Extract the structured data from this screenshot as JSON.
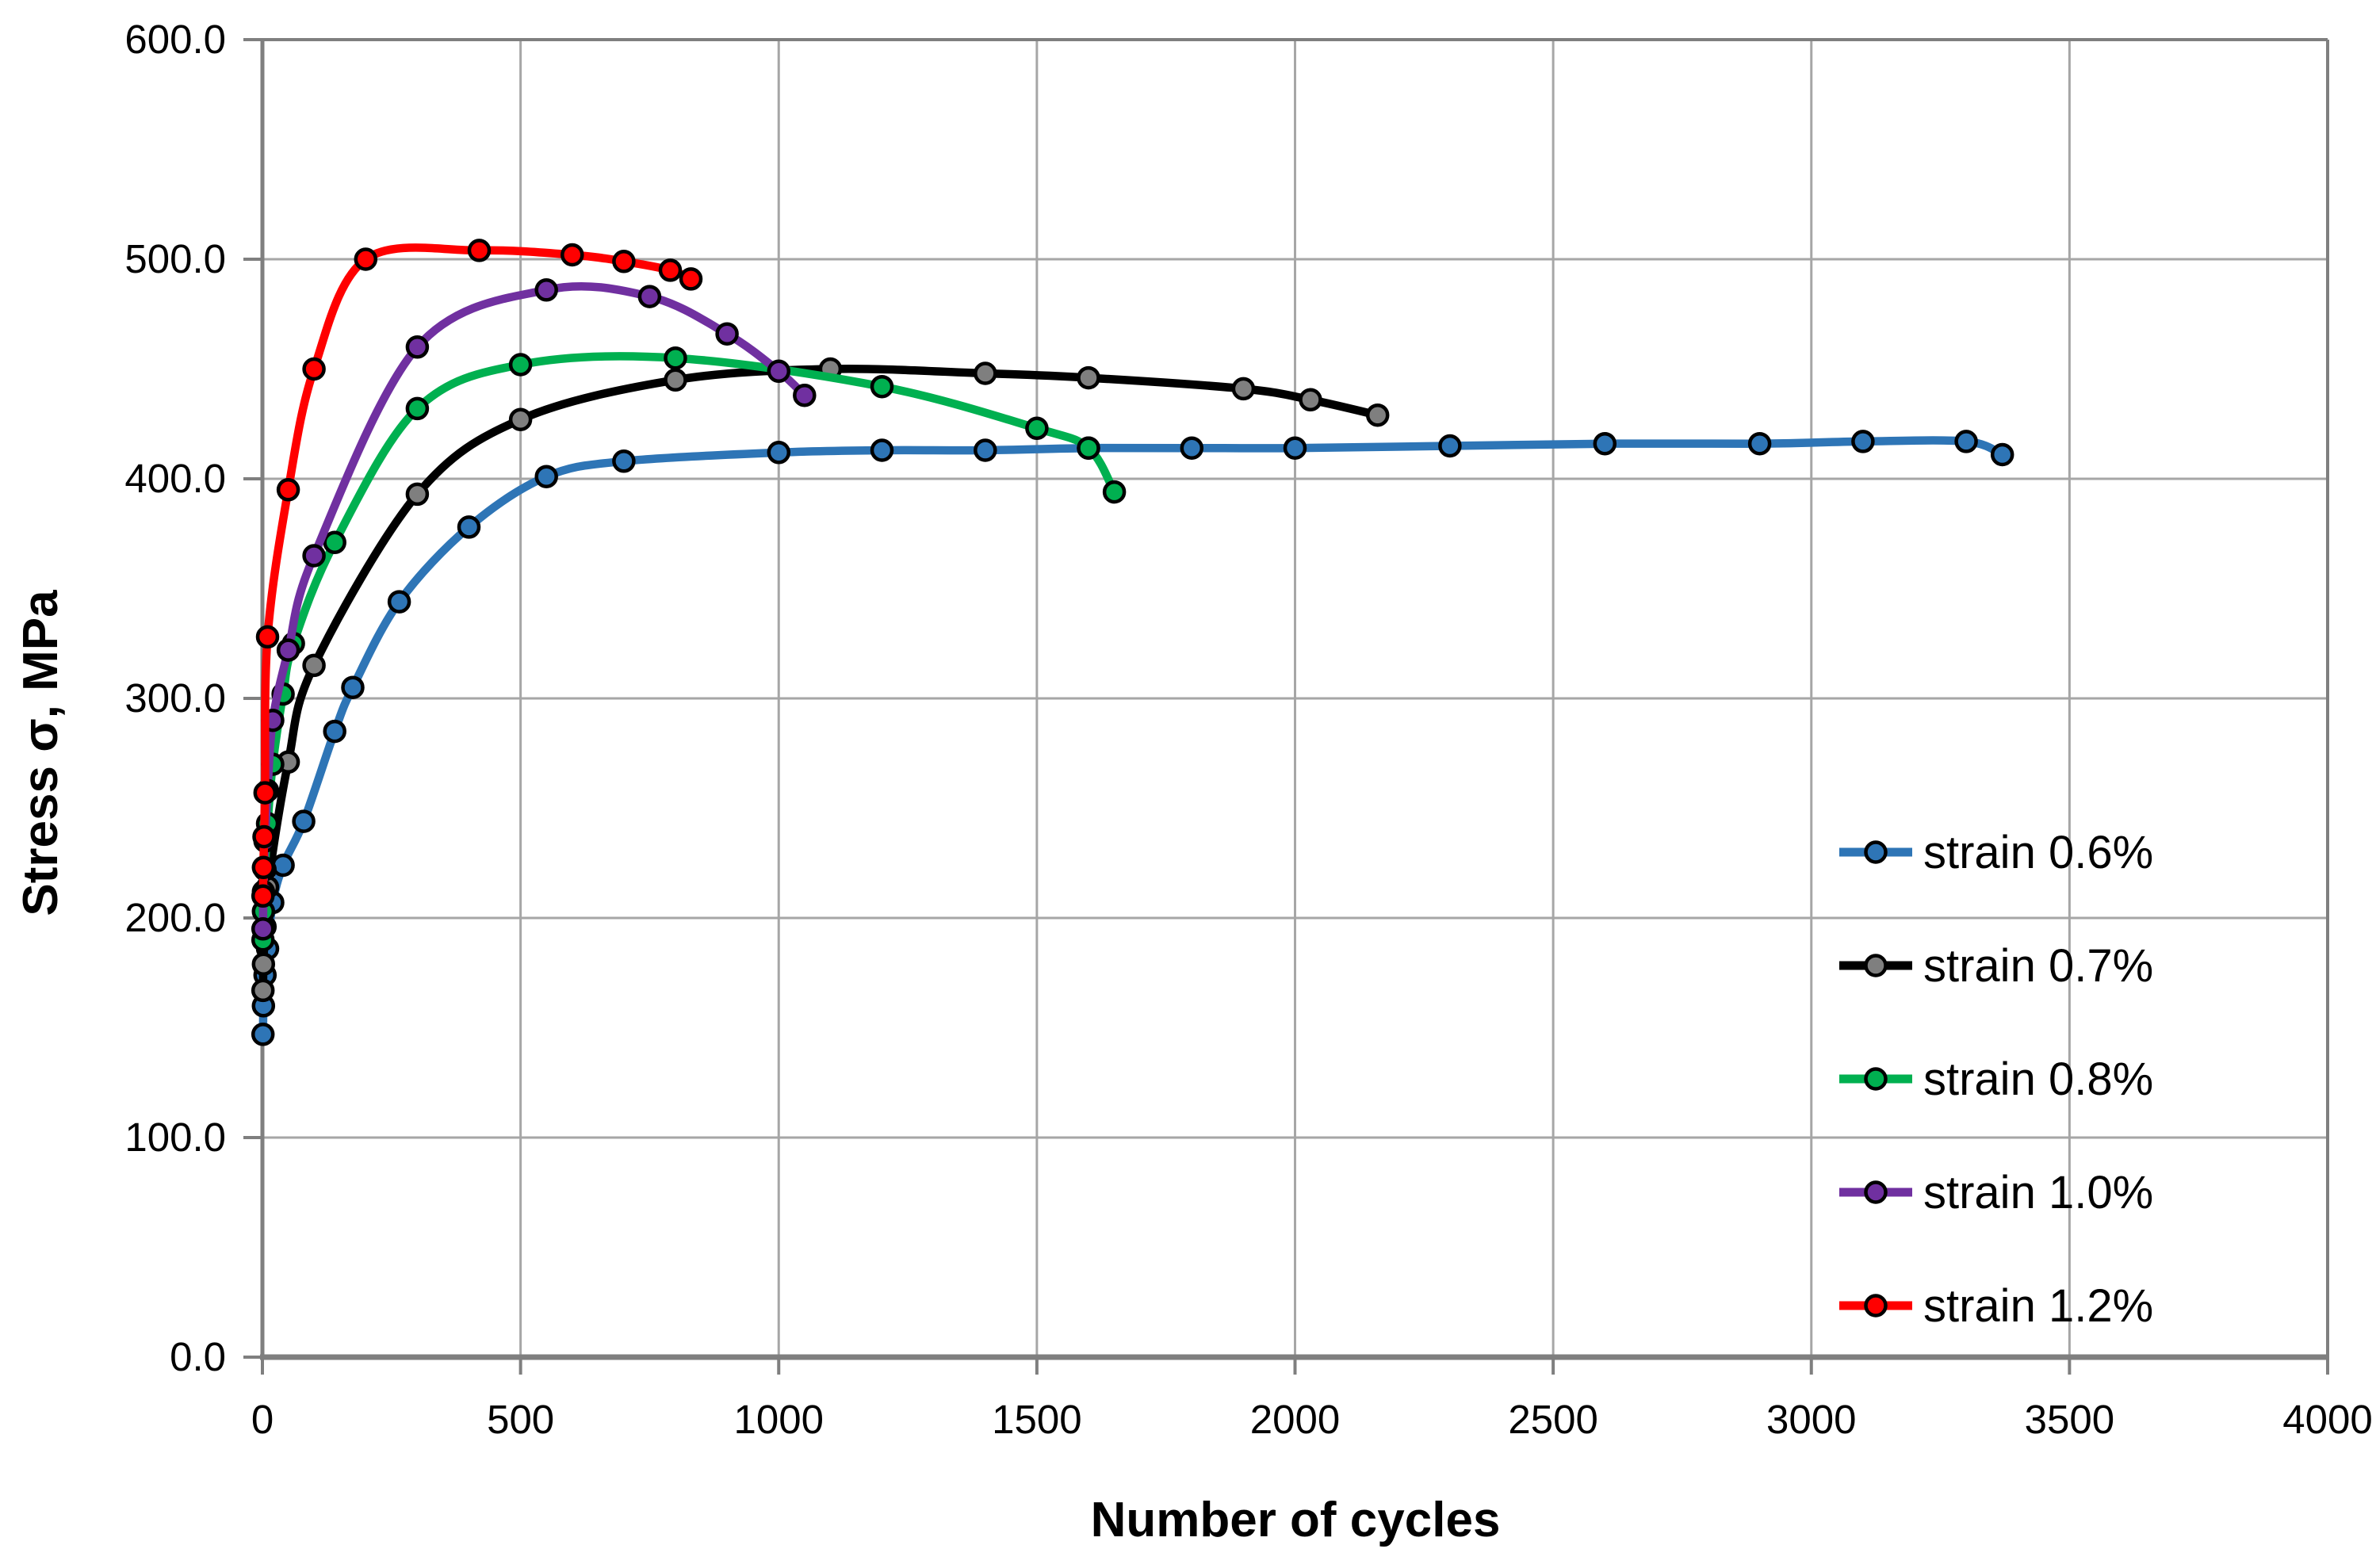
{
  "chart_data": {
    "type": "line",
    "title": "",
    "xlabel": "Number of cycles",
    "ylabel": "Stress σ, MPa",
    "xlim": [
      0,
      4000
    ],
    "ylim": [
      0,
      600
    ],
    "xticks": [
      0,
      500,
      1000,
      1500,
      2000,
      2500,
      3000,
      3500,
      4000
    ],
    "xtick_labels": [
      "0",
      "500",
      "1000",
      "1500",
      "2000",
      "2500",
      "3000",
      "3500",
      "4000"
    ],
    "yticks": [
      0,
      100,
      200,
      300,
      400,
      500,
      600
    ],
    "ytick_labels": [
      "0.0",
      "100.0",
      "200.0",
      "300.0",
      "400.0",
      "500.0",
      "600.0"
    ],
    "grid": true,
    "legend_position": "inside right",
    "colors": {
      "background": "#FFFFFF",
      "gridline": "#A6A6A6",
      "axis": "#7F7F7F",
      "text": "#000000",
      "marker_outline": "#000000"
    },
    "series": [
      {
        "name": "strain 0.6%",
        "color": "#2E75B6",
        "marker_fill": "#2E75B6",
        "points": [
          [
            1,
            147
          ],
          [
            2,
            160
          ],
          [
            5,
            174
          ],
          [
            10,
            186
          ],
          [
            20,
            207
          ],
          [
            40,
            224
          ],
          [
            80,
            244
          ],
          [
            140,
            285
          ],
          [
            175,
            305
          ],
          [
            265,
            344
          ],
          [
            400,
            378
          ],
          [
            550,
            401
          ],
          [
            700,
            408
          ],
          [
            1000,
            412
          ],
          [
            1200,
            413
          ],
          [
            1400,
            413
          ],
          [
            1600,
            414
          ],
          [
            1800,
            414
          ],
          [
            2000,
            414
          ],
          [
            2300,
            415
          ],
          [
            2600,
            416
          ],
          [
            2900,
            416
          ],
          [
            3100,
            417
          ],
          [
            3300,
            417
          ],
          [
            3370,
            411
          ]
        ]
      },
      {
        "name": "strain 0.7%",
        "color": "#000000",
        "marker_fill": "#7F7F7F",
        "points": [
          [
            1,
            167
          ],
          [
            2,
            179
          ],
          [
            5,
            196
          ],
          [
            10,
            214
          ],
          [
            50,
            271
          ],
          [
            100,
            315
          ],
          [
            300,
            393
          ],
          [
            500,
            427
          ],
          [
            800,
            445
          ],
          [
            1100,
            450
          ],
          [
            1400,
            448
          ],
          [
            1600,
            446
          ],
          [
            1900,
            441
          ],
          [
            2030,
            436
          ],
          [
            2160,
            429
          ]
        ]
      },
      {
        "name": "strain 0.8%",
        "color": "#00B050",
        "marker_fill": "#00B050",
        "points": [
          [
            1,
            190
          ],
          [
            2,
            203
          ],
          [
            5,
            222
          ],
          [
            10,
            243
          ],
          [
            20,
            270
          ],
          [
            40,
            302
          ],
          [
            60,
            325
          ],
          [
            140,
            371
          ],
          [
            300,
            432
          ],
          [
            500,
            452
          ],
          [
            800,
            455
          ],
          [
            1200,
            442
          ],
          [
            1500,
            423
          ],
          [
            1600,
            414
          ],
          [
            1650,
            394
          ]
        ]
      },
      {
        "name": "strain 1.0%",
        "color": "#7030A0",
        "marker_fill": "#7030A0",
        "points": [
          [
            1,
            195
          ],
          [
            2,
            212
          ],
          [
            5,
            235
          ],
          [
            10,
            258
          ],
          [
            20,
            290
          ],
          [
            50,
            322
          ],
          [
            100,
            365
          ],
          [
            300,
            460
          ],
          [
            550,
            486
          ],
          [
            750,
            483
          ],
          [
            900,
            466
          ],
          [
            1000,
            449
          ],
          [
            1050,
            438
          ]
        ]
      },
      {
        "name": "strain 1.2%",
        "color": "#FF0000",
        "marker_fill": "#FF0000",
        "points": [
          [
            1,
            210
          ],
          [
            2,
            223
          ],
          [
            3,
            237
          ],
          [
            5,
            257
          ],
          [
            10,
            328
          ],
          [
            50,
            395
          ],
          [
            100,
            450
          ],
          [
            200,
            500
          ],
          [
            420,
            504
          ],
          [
            600,
            502
          ],
          [
            700,
            499
          ],
          [
            790,
            495
          ],
          [
            830,
            491
          ]
        ]
      }
    ]
  }
}
